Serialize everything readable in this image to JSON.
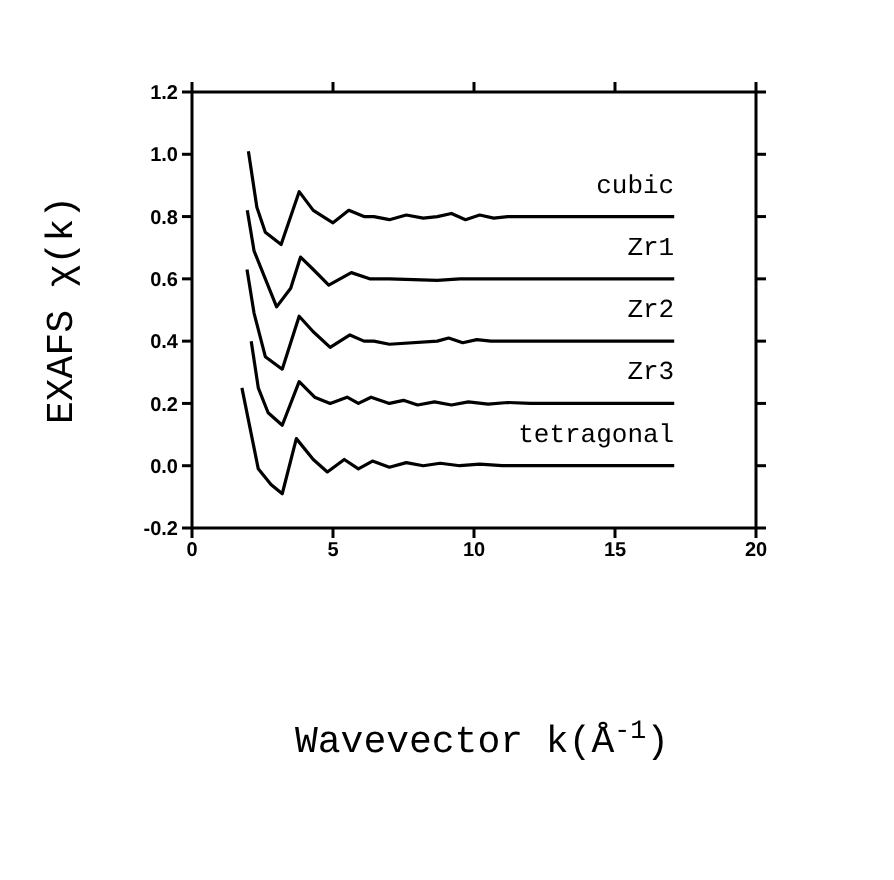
{
  "chart_data": {
    "type": "line",
    "xlabel": "Wavevector k(Å$^{-1}$)",
    "ylabel": "EXAFS χ(k)",
    "xlim": [
      0,
      20
    ],
    "xticks": [
      0,
      5,
      10,
      15,
      20
    ],
    "ylim": [
      -0.2,
      1.2
    ],
    "yticks": [
      {
        "value": -0.2,
        "label": "-0.2"
      },
      {
        "value": 0,
        "label": "0.0"
      },
      {
        "value": 0.2,
        "label": "0.2"
      },
      {
        "value": 0.4,
        "label": "0.4"
      },
      {
        "value": 0.6,
        "label": "0.6"
      },
      {
        "value": 0.8,
        "label": "0.8"
      },
      {
        "value": 1,
        "label": "1.0"
      },
      {
        "value": 1.2,
        "label": "1.2"
      }
    ],
    "marker": "none",
    "line_style": "solid",
    "series": [
      {
        "name": "cubic",
        "color": "#000000",
        "x": [
          2.0,
          2.3,
          2.6,
          3.16,
          3.8,
          4.3,
          5.0,
          5.56,
          6.1,
          6.45,
          7.0,
          7.6,
          8.2,
          8.7,
          9.2,
          9.7,
          10.2,
          10.7,
          11.2,
          17.1
        ],
        "values": [
          1.01,
          0.83,
          0.75,
          0.71,
          0.88,
          0.82,
          0.78,
          0.82,
          0.8,
          0.8,
          0.79,
          0.805,
          0.795,
          0.8,
          0.81,
          0.79,
          0.805,
          0.795,
          0.8,
          0.8
        ]
      },
      {
        "name": "Zr1",
        "color": "#000000",
        "x": [
          1.96,
          2.2,
          2.6,
          3.0,
          3.5,
          3.85,
          4.3,
          4.85,
          5.65,
          6.3,
          7.0,
          8.7,
          9.5,
          17.1
        ],
        "values": [
          0.82,
          0.69,
          0.6,
          0.51,
          0.57,
          0.67,
          0.63,
          0.58,
          0.62,
          0.6,
          0.6,
          0.595,
          0.6,
          0.6
        ]
      },
      {
        "name": "Zr2",
        "color": "#000000",
        "x": [
          1.95,
          2.2,
          2.6,
          3.2,
          3.8,
          4.3,
          4.9,
          5.6,
          6.1,
          6.45,
          7.0,
          8.7,
          9.1,
          9.6,
          10.1,
          10.6,
          17.1
        ],
        "values": [
          0.63,
          0.49,
          0.35,
          0.31,
          0.48,
          0.43,
          0.38,
          0.42,
          0.4,
          0.4,
          0.39,
          0.4,
          0.41,
          0.395,
          0.405,
          0.4,
          0.4
        ]
      },
      {
        "name": "Zr3",
        "color": "#000000",
        "x": [
          2.1,
          2.35,
          2.7,
          3.2,
          3.8,
          4.35,
          4.9,
          5.5,
          5.9,
          6.35,
          7.0,
          7.5,
          8.0,
          8.6,
          9.2,
          9.8,
          10.5,
          11.2,
          12.0,
          17.1
        ],
        "values": [
          0.4,
          0.25,
          0.17,
          0.13,
          0.27,
          0.22,
          0.2,
          0.22,
          0.2,
          0.22,
          0.2,
          0.21,
          0.195,
          0.205,
          0.195,
          0.205,
          0.198,
          0.203,
          0.2,
          0.2
        ]
      },
      {
        "name": "tetragonal",
        "color": "#000000",
        "x": [
          1.77,
          2.35,
          2.8,
          3.2,
          3.7,
          4.3,
          4.8,
          5.4,
          5.9,
          6.4,
          7.0,
          7.6,
          8.2,
          8.8,
          9.5,
          10.2,
          11.0,
          17.1
        ],
        "values": [
          0.25,
          -0.01,
          -0.06,
          -0.09,
          0.087,
          0.02,
          -0.02,
          0.02,
          -0.01,
          0.015,
          -0.005,
          0.01,
          0.0,
          0.008,
          0.0,
          0.005,
          0.0,
          0.0
        ]
      }
    ]
  }
}
